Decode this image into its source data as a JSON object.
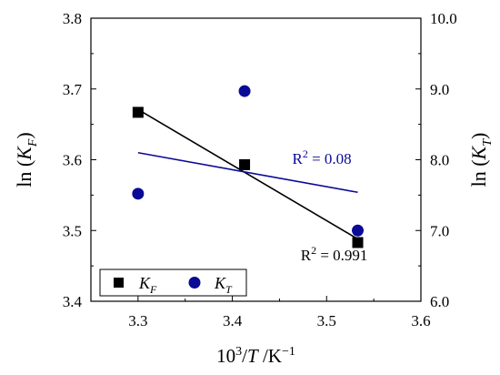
{
  "chart_data": {
    "type": "scatter",
    "x": [
      3.3,
      3.413,
      3.533
    ],
    "xlabel": {
      "base": "10",
      "sup": "3",
      "slash": "/",
      "var": "T",
      "unit": " /K",
      "unit_sup": "−1"
    },
    "xlim": [
      3.25,
      3.6
    ],
    "xticks": [
      3.3,
      3.4,
      3.5,
      3.6
    ],
    "xtick_labels": [
      "3.3",
      "3.4",
      "3.5",
      "3.6"
    ],
    "y_left": {
      "label": {
        "prefix": "ln (",
        "var": "K",
        "sub": "F",
        "suffix": ")"
      },
      "lim": [
        3.4,
        3.8
      ],
      "ticks": [
        3.4,
        3.5,
        3.6,
        3.7,
        3.8
      ],
      "tick_labels": [
        "3.4",
        "3.5",
        "3.6",
        "3.7",
        "3.8"
      ]
    },
    "y_right": {
      "label": {
        "prefix": "ln (",
        "var": "K",
        "sub": "T",
        "suffix": ")"
      },
      "lim": [
        6.0,
        10.0
      ],
      "ticks": [
        6.0,
        7.0,
        8.0,
        9.0,
        10.0
      ],
      "tick_labels": [
        "6.0",
        "7.0",
        "8.0",
        "9.0",
        "10.0"
      ]
    },
    "series": [
      {
        "name": {
          "var": "K",
          "sub": "F"
        },
        "axis": "left",
        "marker": "square",
        "color": "#000000",
        "y": [
          3.667,
          3.593,
          3.483
        ],
        "fit": {
          "x": [
            3.3,
            3.533
          ],
          "y": [
            3.671,
            3.488
          ]
        },
        "annotation": {
          "prefix": "R",
          "sup": "2",
          "value": " = 0.991",
          "x": 3.508,
          "y": 3.458
        }
      },
      {
        "name": {
          "var": "K",
          "sub": "T"
        },
        "axis": "right",
        "marker": "circle",
        "color": "#0a0a96",
        "y": [
          7.52,
          8.97,
          7.0
        ],
        "fit": {
          "x": [
            3.3,
            3.533
          ],
          "y": [
            8.1,
            7.54
          ]
        },
        "annotation": {
          "prefix": "R",
          "sup": "2",
          "value": " = 0.08",
          "x": 3.495,
          "y": 7.94
        }
      }
    ],
    "legend": "bottom-left",
    "grid": false
  }
}
